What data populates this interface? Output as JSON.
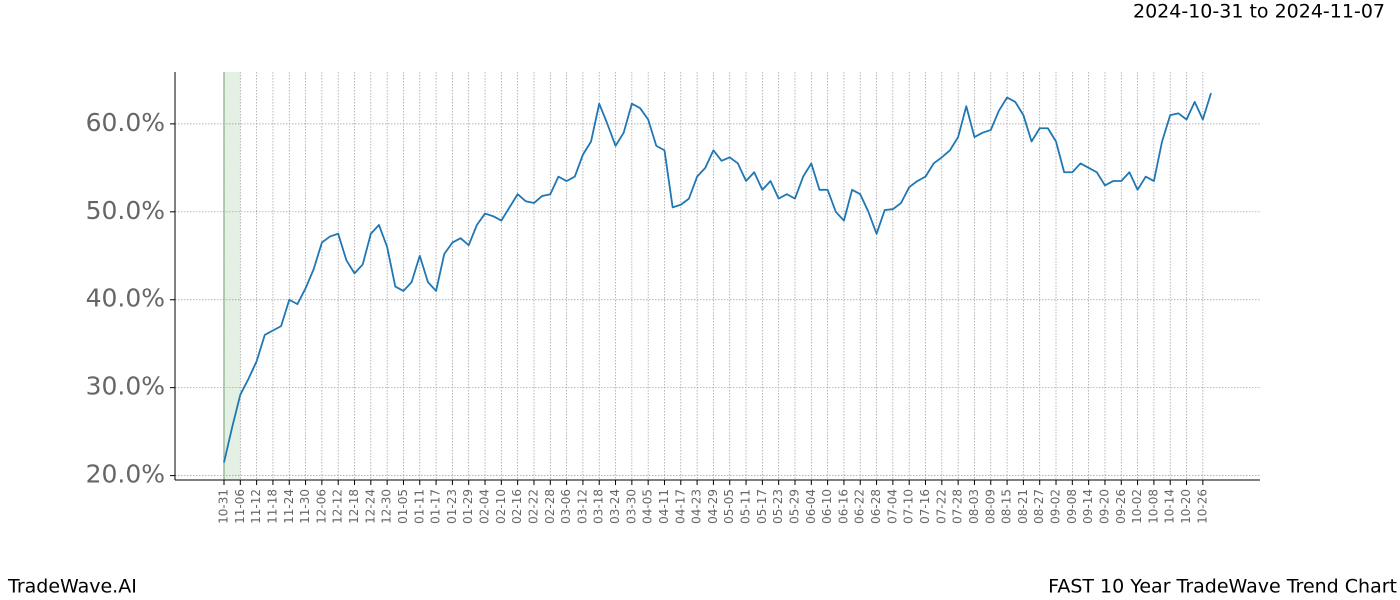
{
  "chart_data": {
    "type": "line",
    "date_range": "2024-10-31 to 2024-11-07",
    "footer_left": "TradeWave.AI",
    "footer_right": "FAST 10 Year TradeWave Trend Chart",
    "categories": [
      "10-31",
      null,
      "11-06",
      null,
      "11-12",
      null,
      "11-18",
      null,
      "11-24",
      null,
      "11-30",
      null,
      "12-06",
      null,
      "12-12",
      null,
      "12-18",
      null,
      "12-24",
      null,
      "12-30",
      null,
      "01-05",
      null,
      "01-11",
      null,
      "01-17",
      null,
      "01-23",
      null,
      "01-29",
      null,
      "02-04",
      null,
      "02-10",
      null,
      "02-16",
      null,
      "02-22",
      null,
      "02-28",
      null,
      "03-06",
      null,
      "03-12",
      null,
      "03-18",
      null,
      "03-24",
      null,
      "03-30",
      null,
      "04-05",
      null,
      "04-11",
      null,
      "04-17",
      null,
      "04-23",
      null,
      "04-29",
      null,
      "05-05",
      null,
      "05-11",
      null,
      "05-17",
      null,
      "05-23",
      null,
      "05-29",
      null,
      "06-04",
      null,
      "06-10",
      null,
      "06-16",
      null,
      "06-22",
      null,
      "06-28",
      null,
      "07-04",
      null,
      "07-10",
      null,
      "07-16",
      null,
      "07-22",
      null,
      "07-28",
      null,
      "08-03",
      null,
      "08-09",
      null,
      "08-15",
      null,
      "08-21",
      null,
      "08-27",
      null,
      "09-02",
      null,
      "09-08",
      null,
      "09-14",
      null,
      "09-20",
      null,
      "09-26",
      null,
      "10-02",
      null,
      "10-08",
      null,
      "10-14",
      null,
      "10-20",
      null,
      "10-26",
      null
    ],
    "series": [
      {
        "color": "#1f77b4",
        "values": [
          21.5,
          25.5,
          29.2,
          31,
          33,
          36,
          36.5,
          37,
          40,
          39.5,
          41.3,
          43.5,
          46.5,
          47.2,
          47.5,
          44.5,
          43,
          44,
          47.5,
          48.5,
          46,
          41.5,
          41,
          42,
          45,
          42,
          41,
          45.2,
          46.5,
          47,
          46.2,
          48.5,
          49.8,
          49.5,
          49,
          50.5,
          52,
          51.2,
          51,
          51.8,
          52,
          54,
          53.5,
          54,
          56.5,
          58,
          62.3,
          60,
          57.5,
          59,
          62.3,
          61.8,
          60.5,
          57.5,
          57,
          50.5,
          50.8,
          51.5,
          54,
          55,
          57,
          55.8,
          56.2,
          55.5,
          53.5,
          54.5,
          52.5,
          53.5,
          51.5,
          52,
          51.5,
          54,
          55.5,
          52.5,
          52.5,
          50,
          49,
          52.5,
          52,
          50,
          47.5,
          50.2,
          50.3,
          51,
          52.8,
          53.5,
          54,
          55.5,
          56.2,
          57,
          58.5,
          62,
          58.5,
          59,
          59.3,
          61.5,
          63,
          62.5,
          61,
          58,
          59.5,
          59.5,
          58,
          54.5,
          54.5,
          55.5,
          55,
          54.5,
          53,
          53.5,
          53.5,
          54.5,
          52.5,
          54,
          53.5,
          58,
          61,
          61.2,
          60.5,
          62.5,
          60.5,
          63.5
        ]
      }
    ],
    "ylim": [
      19.5,
      65.9
    ],
    "yticks": [
      {
        "value": 20,
        "label": "20.0%"
      },
      {
        "value": 30,
        "label": "30.0%"
      },
      {
        "value": 40,
        "label": "40.0%"
      },
      {
        "value": 50,
        "label": "50.0%"
      },
      {
        "value": 60,
        "label": "60.0%"
      }
    ],
    "grid": true,
    "shade": [
      "10-31",
      "11-06"
    ],
    "shade_color": "#e3f0e3"
  }
}
